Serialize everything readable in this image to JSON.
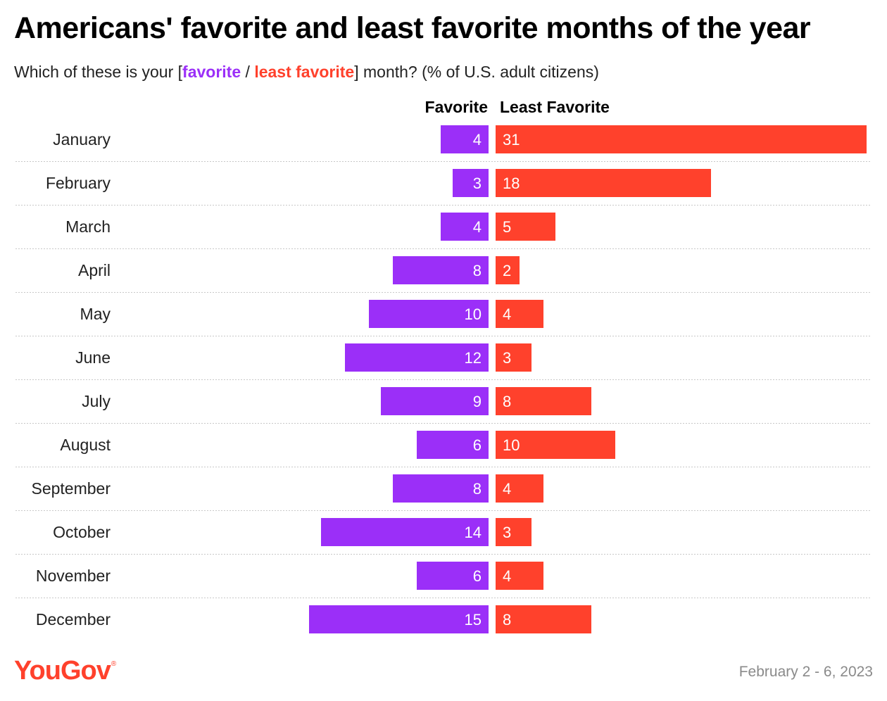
{
  "title": "Americans' favorite and least favorite months of the year",
  "subtitle": {
    "prefix": "Which of these is your [",
    "favorite": "favorite",
    "separator": " / ",
    "least": "least favorite",
    "suffix": "] month? (% of U.S. adult citizens)"
  },
  "colors": {
    "favorite": "#9b2ff8",
    "least": "#ff412c",
    "gridline": "#c8c8c8"
  },
  "chart_data": {
    "type": "bar",
    "orientation": "horizontal-diverging",
    "title": "Americans' favorite and least favorite months of the year",
    "unit": "% of U.S. adult citizens",
    "categories": [
      "January",
      "February",
      "March",
      "April",
      "May",
      "June",
      "July",
      "August",
      "September",
      "October",
      "November",
      "December"
    ],
    "series": [
      {
        "name": "Favorite",
        "values": [
          4,
          3,
          4,
          8,
          10,
          12,
          9,
          6,
          8,
          14,
          6,
          15
        ]
      },
      {
        "name": "Least Favorite",
        "values": [
          31,
          18,
          5,
          2,
          4,
          3,
          8,
          10,
          4,
          3,
          4,
          8
        ]
      }
    ]
  },
  "headers": {
    "favorite": "Favorite",
    "least": "Least Favorite"
  },
  "footer": {
    "logo": "YouGov",
    "logo_mark": "®",
    "date": "February 2 - 6, 2023"
  }
}
